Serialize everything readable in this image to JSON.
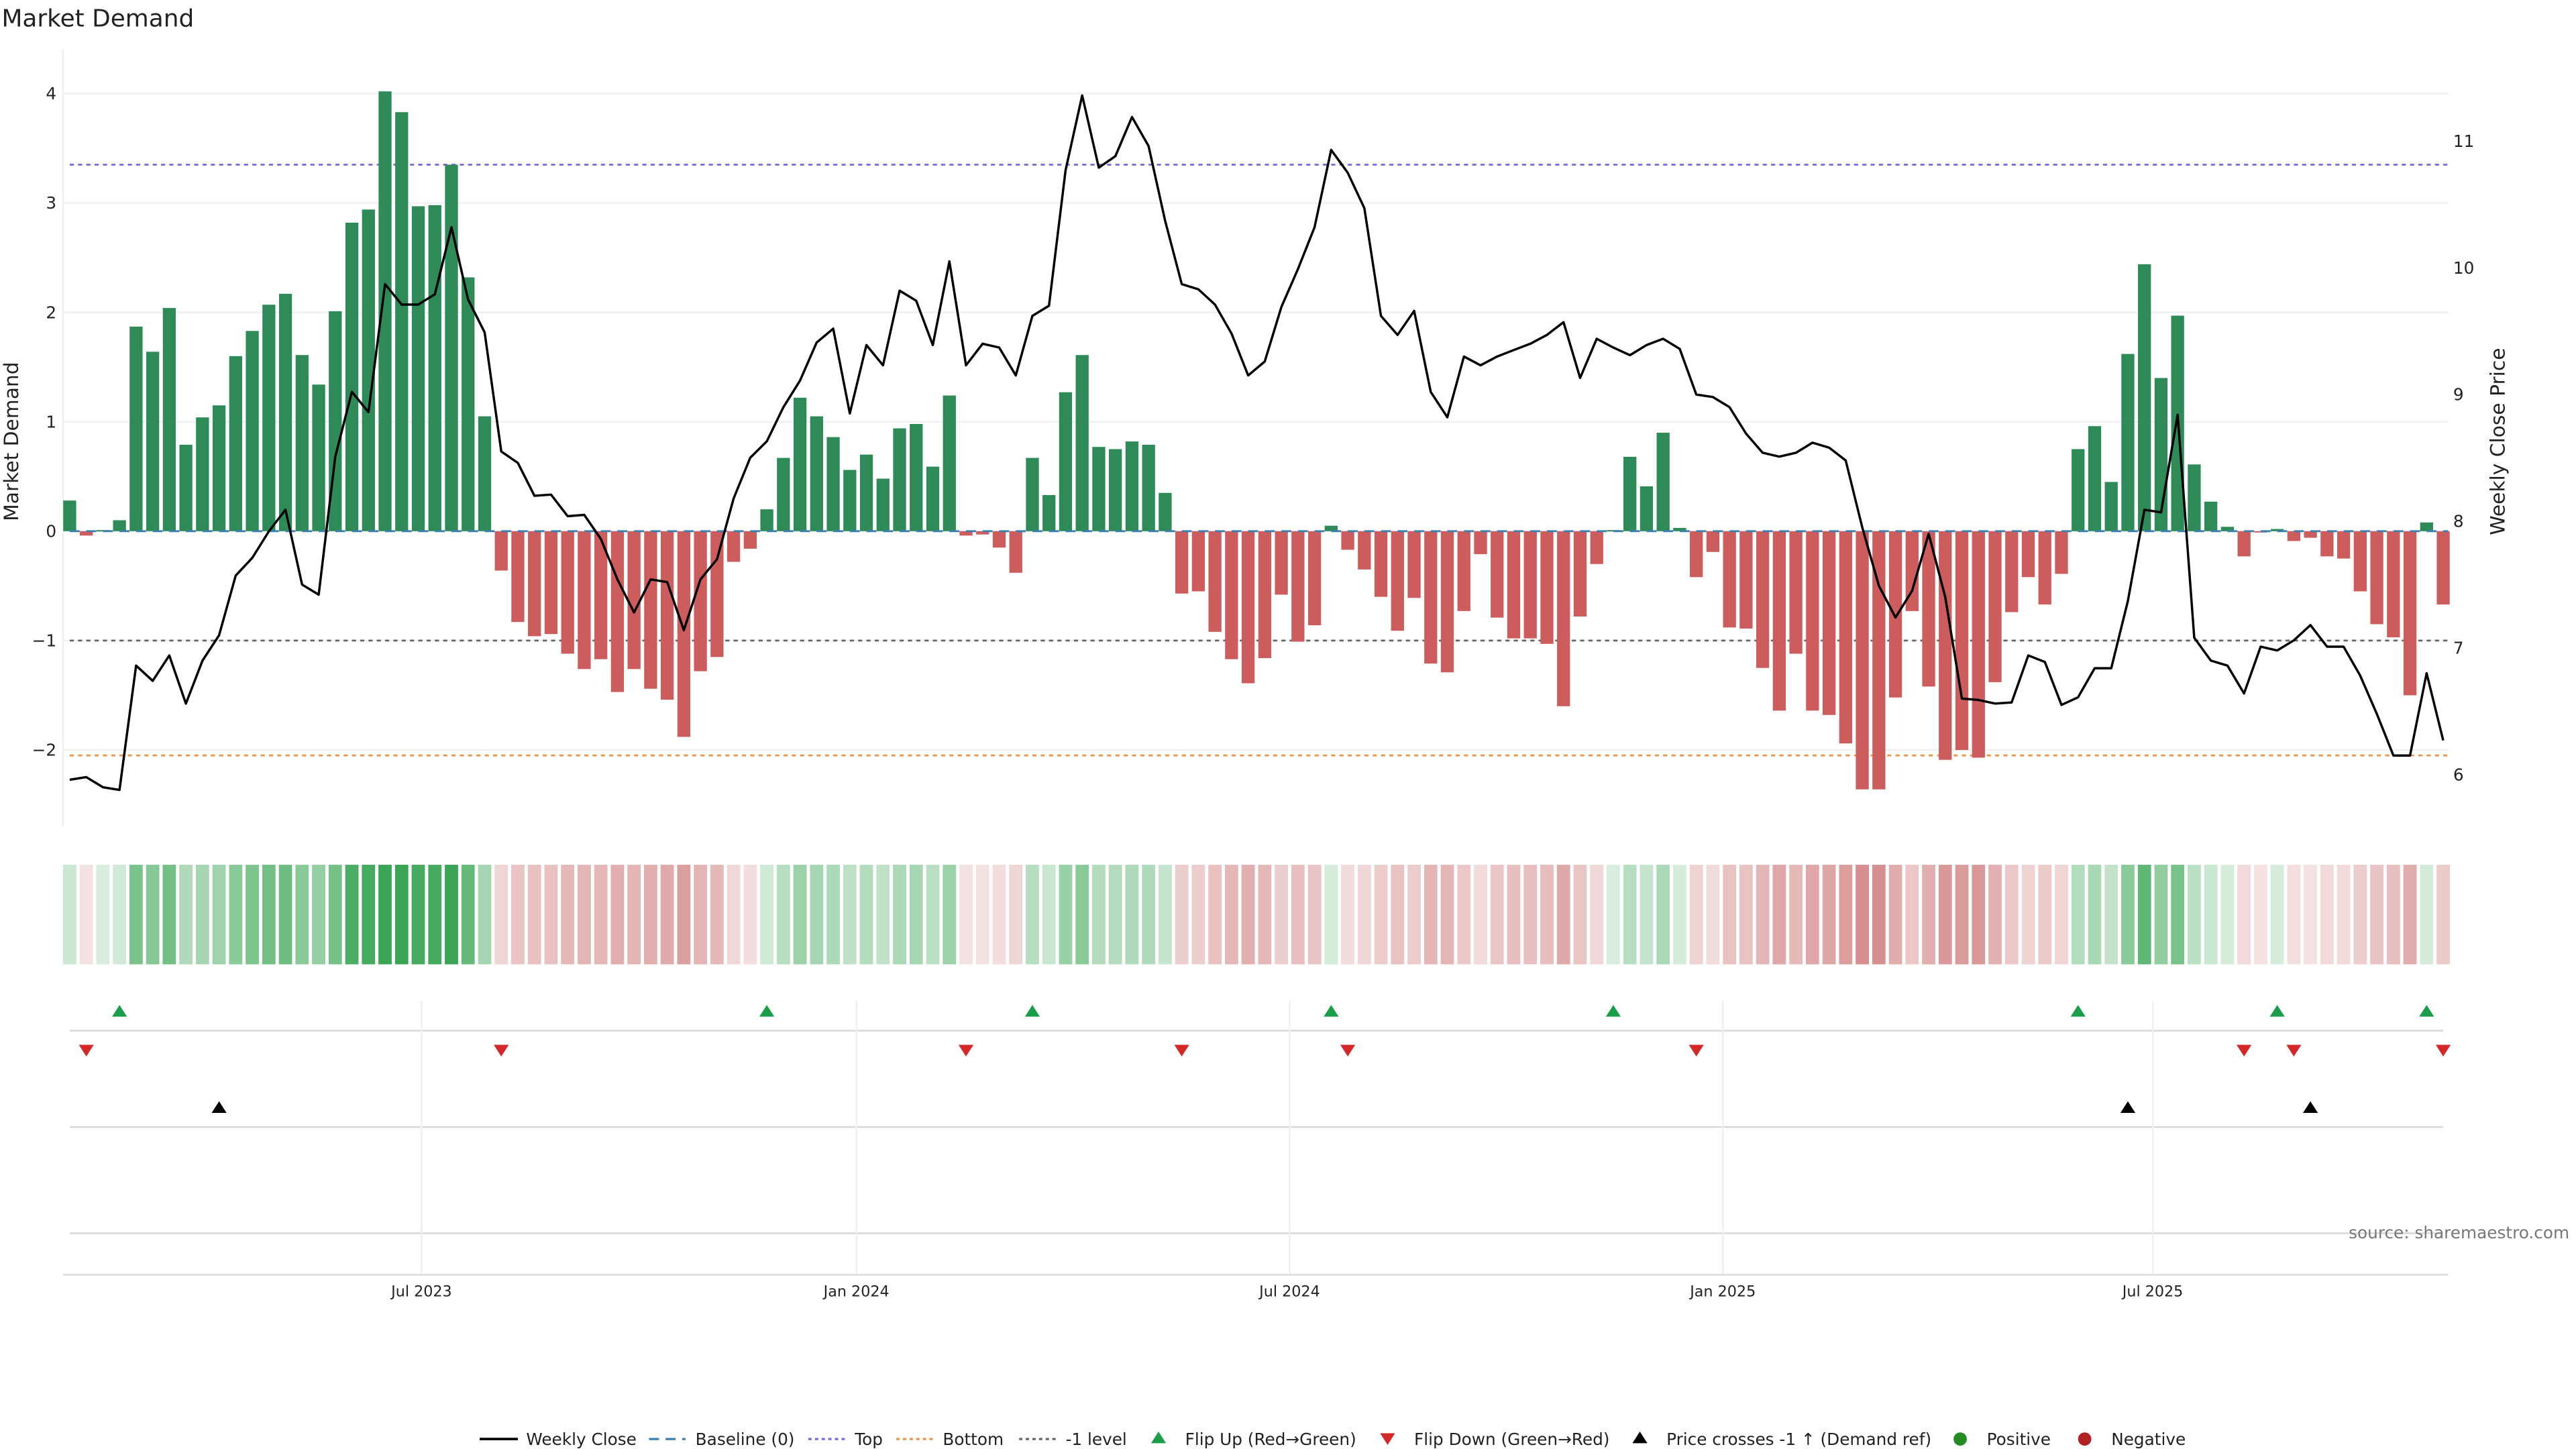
{
  "chart_data": {
    "type": "bar+line",
    "title": "Market Demand",
    "ylabel": "Market Demand",
    "y2label": "Weekly Close Price",
    "ylim": [
      -2.7,
      4.4
    ],
    "y2lim": [
      5.59,
      11.72
    ],
    "y_ticks": [
      -2,
      -1,
      0,
      1,
      2,
      3,
      4
    ],
    "y_tick_labels": [
      "−2",
      "−1",
      "0",
      "1",
      "2",
      "3",
      "4"
    ],
    "y2_ticks": [
      6,
      7,
      8,
      9,
      10,
      11
    ],
    "y2_tick_labels": [
      "6",
      "7",
      "8",
      "9",
      "10",
      "11"
    ],
    "x_ticks": [
      {
        "label": "Jul 2023",
        "week": 21.2
      },
      {
        "label": "Jan 2024",
        "week": 47.4
      },
      {
        "label": "Jul 2024",
        "week": 73.5
      },
      {
        "label": "Jan 2025",
        "week": 99.6
      },
      {
        "label": "Jul 2025",
        "week": 125.5
      }
    ],
    "reference_lines": {
      "top": 3.35,
      "bottom": -2.05,
      "minus_one": -1,
      "baseline": 0
    },
    "colors": {
      "positive": "#2e8b57",
      "negative": "#cd5c5c",
      "price": "#000000",
      "top": "#7b68d8",
      "bottom": "#e8954a",
      "minus_one": "#666666",
      "baseline": "#3b7fb0",
      "flip_up": "#1a9e4a",
      "flip_down": "#d62728",
      "cross": "#000000",
      "pos_dot": "#228b22",
      "neg_dot": "#b22222"
    },
    "demand": [
      0.28,
      -0.04,
      0.01,
      0.1,
      1.87,
      1.64,
      2.04,
      0.79,
      1.04,
      1.15,
      1.6,
      1.83,
      2.07,
      2.17,
      1.61,
      1.34,
      2.01,
      2.82,
      2.94,
      4.02,
      3.83,
      2.97,
      2.98,
      3.35,
      2.32,
      1.05,
      -0.36,
      -0.83,
      -0.96,
      -0.94,
      -1.12,
      -1.26,
      -1.17,
      -1.47,
      -1.26,
      -1.44,
      -1.54,
      -1.88,
      -1.28,
      -1.15,
      -0.28,
      -0.16,
      0.2,
      0.67,
      1.22,
      1.05,
      0.86,
      0.56,
      0.7,
      0.48,
      0.94,
      0.98,
      0.59,
      1.24,
      -0.04,
      -0.03,
      -0.15,
      -0.38,
      0.67,
      0.33,
      1.27,
      1.61,
      0.77,
      0.75,
      0.82,
      0.79,
      0.35,
      -0.57,
      -0.55,
      -0.92,
      -1.17,
      -1.39,
      -1.16,
      -0.58,
      -1.01,
      -0.86,
      0.05,
      -0.17,
      -0.35,
      -0.6,
      -0.91,
      -0.61,
      -1.21,
      -1.29,
      -0.73,
      -0.21,
      -0.79,
      -0.98,
      -0.98,
      -1.03,
      -1.6,
      -0.78,
      -0.3,
      0.01,
      0.68,
      0.41,
      0.9,
      0.03,
      -0.42,
      -0.19,
      -0.88,
      -0.89,
      -1.25,
      -1.64,
      -1.12,
      -1.64,
      -1.68,
      -1.94,
      -2.36,
      -2.36,
      -1.52,
      -0.73,
      -1.42,
      -2.09,
      -2.0,
      -2.07,
      -1.38,
      -0.74,
      -0.42,
      -0.67,
      -0.39,
      0.75,
      0.96,
      0.45,
      1.62,
      2.44,
      1.4,
      1.97,
      0.61,
      0.27,
      0.04,
      -0.23,
      -0.01,
      0.02,
      -0.09,
      -0.06,
      -0.23,
      -0.25,
      -0.55,
      -0.85,
      -0.97,
      -1.5,
      0.08,
      -0.67
    ],
    "weekly_close": [
      5.96,
      5.98,
      5.9,
      5.88,
      6.86,
      6.74,
      6.94,
      6.56,
      6.9,
      7.1,
      7.57,
      7.71,
      7.92,
      8.09,
      7.5,
      7.42,
      8.51,
      9.02,
      8.86,
      9.87,
      9.71,
      9.71,
      9.79,
      10.32,
      9.75,
      9.49,
      8.55,
      8.46,
      8.2,
      8.21,
      8.04,
      8.05,
      7.86,
      7.54,
      7.28,
      7.54,
      7.52,
      7.14,
      7.54,
      7.7,
      8.18,
      8.5,
      8.63,
      8.9,
      9.11,
      9.41,
      9.52,
      8.85,
      9.39,
      9.23,
      9.82,
      9.74,
      9.39,
      10.05,
      9.23,
      9.4,
      9.37,
      9.15,
      9.62,
      9.7,
      10.77,
      11.36,
      10.79,
      10.88,
      11.19,
      10.96,
      10.37,
      9.87,
      9.83,
      9.71,
      9.48,
      9.15,
      9.26,
      9.69,
      9.99,
      10.32,
      10.93,
      10.75,
      10.47,
      9.62,
      9.47,
      9.66,
      9.02,
      8.82,
      9.3,
      9.23,
      9.3,
      9.35,
      9.4,
      9.47,
      9.57,
      9.13,
      9.44,
      9.37,
      9.31,
      9.39,
      9.44,
      9.36,
      9.0,
      8.98,
      8.9,
      8.69,
      8.54,
      8.51,
      8.54,
      8.62,
      8.58,
      8.48,
      7.95,
      7.49,
      7.24,
      7.45,
      7.9,
      7.4,
      6.6,
      6.59,
      6.56,
      6.57,
      6.94,
      6.89,
      6.55,
      6.61,
      6.84,
      6.84,
      7.37,
      8.09,
      8.07,
      8.84,
      7.08,
      6.9,
      6.86,
      6.64,
      7.01,
      6.98,
      7.06,
      7.18,
      7.01,
      7.01,
      6.78,
      6.48,
      6.15,
      6.15,
      6.8,
      6.27
    ],
    "flip_up_weeks": [
      3,
      42,
      58,
      76,
      93,
      121,
      133,
      142
    ],
    "flip_down_weeks": [
      1,
      26,
      54,
      67,
      77,
      98,
      131,
      134,
      143
    ],
    "price_cross_weeks": [
      9,
      124,
      135
    ],
    "legend": [
      {
        "label": "Weekly Close",
        "kind": "line",
        "color": "#000000"
      },
      {
        "label": "Baseline (0)",
        "kind": "dash",
        "color": "#3b7fb0"
      },
      {
        "label": "Top",
        "kind": "dot",
        "color": "#7b68d8"
      },
      {
        "label": "Bottom",
        "kind": "dot",
        "color": "#e8954a"
      },
      {
        "label": "-1 level",
        "kind": "dot",
        "color": "#666666"
      },
      {
        "label": "Flip Up (Red→Green)",
        "kind": "tri-up",
        "color": "#1a9e4a"
      },
      {
        "label": "Flip Down (Green→Red)",
        "kind": "tri-down",
        "color": "#d62728"
      },
      {
        "label": "Price crosses -1 ↑ (Demand ref)",
        "kind": "tri-up",
        "color": "#000000"
      },
      {
        "label": "Positive",
        "kind": "circle",
        "color": "#228b22"
      },
      {
        "label": "Negative",
        "kind": "circle",
        "color": "#b22222"
      }
    ],
    "legend_position": "bottom-center",
    "source": "source: sharemaestro.com"
  }
}
